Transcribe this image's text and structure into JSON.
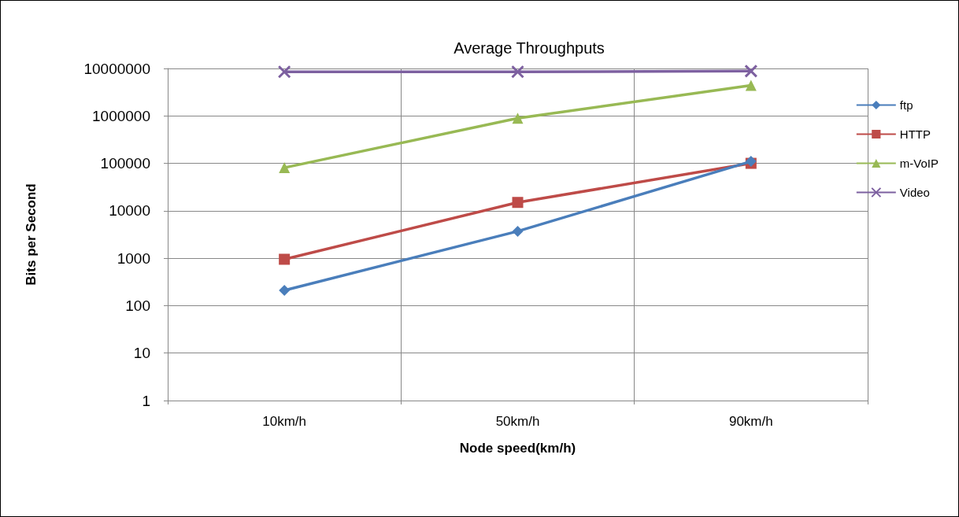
{
  "chart_data": {
    "type": "line",
    "title": "Average Throughputs",
    "xlabel": "Node speed(km/h)",
    "ylabel": "Bits per Second",
    "categories": [
      "10km/h",
      "50km/h",
      "90km/h"
    ],
    "series": [
      {
        "name": "ftp",
        "color": "#4a7ebb",
        "marker": "diamond",
        "values": [
          210,
          3700,
          110000
        ]
      },
      {
        "name": "HTTP",
        "color": "#be4b48",
        "marker": "square",
        "values": [
          950,
          15000,
          100000
        ]
      },
      {
        "name": "m-VoIP",
        "color": "#98b954",
        "marker": "triangle",
        "values": [
          81000,
          890000,
          4400000
        ]
      },
      {
        "name": "Video",
        "color": "#7d60a0",
        "marker": "cross",
        "values": [
          8500000,
          8500000,
          8800000
        ]
      }
    ],
    "log": true,
    "ylim": [
      1,
      10000000
    ],
    "yticks": [
      1,
      10,
      100,
      1000,
      10000,
      100000,
      1000000,
      10000000
    ],
    "grid": true,
    "legend": "right",
    "line_style": "solid"
  }
}
